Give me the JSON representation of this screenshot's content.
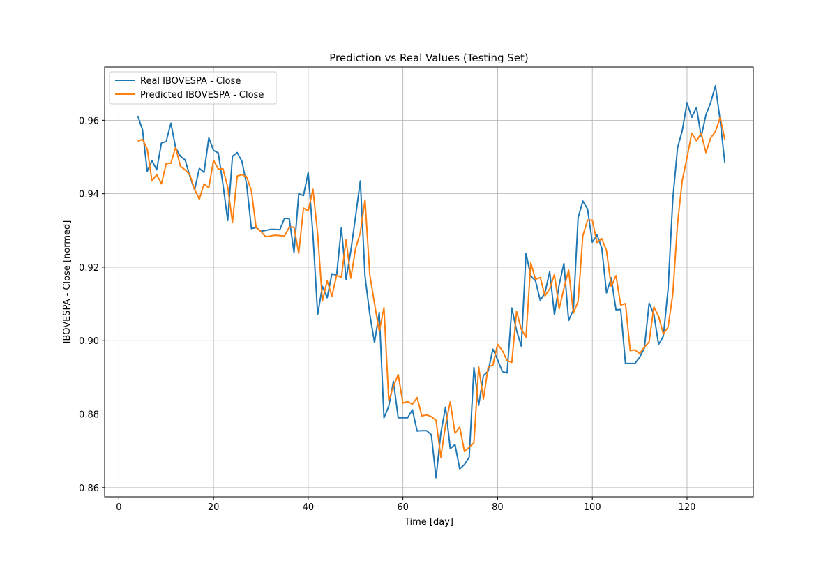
{
  "chart_data": {
    "type": "line",
    "title": "Prediction vs Real Values (Testing Set)",
    "xlabel": "Time [day]",
    "ylabel": "IBOVESPA - Close [normed]",
    "xlim": [
      -3,
      134
    ],
    "ylim": [
      0.8575,
      0.9745
    ],
    "xticks": [
      0,
      20,
      40,
      60,
      80,
      100,
      120
    ],
    "yticks": [
      0.86,
      0.88,
      0.9,
      0.92,
      0.94,
      0.96
    ],
    "ytick_labels": [
      "0.86",
      "0.88",
      "0.90",
      "0.92",
      "0.94",
      "0.96"
    ],
    "grid": true,
    "legend_position": "top-left",
    "x": [
      4,
      5,
      6,
      7,
      8,
      9,
      10,
      11,
      12,
      13,
      14,
      15,
      16,
      17,
      18,
      19,
      20,
      21,
      22,
      23,
      24,
      25,
      26,
      27,
      28,
      29,
      30,
      31,
      32,
      33,
      34,
      35,
      36,
      37,
      38,
      39,
      40,
      41,
      42,
      43,
      44,
      45,
      46,
      47,
      48,
      49,
      50,
      51,
      52,
      53,
      54,
      55,
      56,
      57,
      58,
      59,
      60,
      61,
      62,
      63,
      64,
      65,
      66,
      67,
      68,
      69,
      70,
      71,
      72,
      73,
      74,
      75,
      76,
      77,
      78,
      79,
      80,
      81,
      82,
      83,
      84,
      85,
      86,
      87,
      88,
      89,
      90,
      91,
      92,
      93,
      94,
      95,
      96,
      97,
      98,
      99,
      100,
      101,
      102,
      103,
      104,
      105,
      106,
      107,
      108,
      109,
      110,
      111,
      112,
      113,
      114,
      115,
      116,
      117,
      118,
      119,
      120,
      121,
      122,
      123,
      124,
      125,
      126,
      127,
      128
    ],
    "series": [
      {
        "name": "Real IBOVESPA - Close",
        "color": "#1f77b4",
        "values": [
          0.9612,
          0.9574,
          0.9461,
          0.949,
          0.9465,
          0.9538,
          0.9542,
          0.9592,
          0.9525,
          0.9502,
          0.9492,
          0.9448,
          0.941,
          0.9469,
          0.9458,
          0.9552,
          0.9518,
          0.9511,
          0.9425,
          0.9327,
          0.9502,
          0.9512,
          0.9488,
          0.9425,
          0.9305,
          0.9308,
          0.9298,
          0.93,
          0.9303,
          0.9303,
          0.9302,
          0.9333,
          0.9332,
          0.924,
          0.94,
          0.9395,
          0.9458,
          0.9288,
          0.9071,
          0.9148,
          0.9117,
          0.9182,
          0.9178,
          0.9308,
          0.9167,
          0.9245,
          0.9338,
          0.9435,
          0.9175,
          0.9072,
          0.8995,
          0.9077,
          0.879,
          0.8821,
          0.8889,
          0.879,
          0.879,
          0.879,
          0.8812,
          0.8754,
          0.8755,
          0.8755,
          0.8744,
          0.8627,
          0.8748,
          0.8819,
          0.8706,
          0.8717,
          0.8651,
          0.8663,
          0.8683,
          0.8927,
          0.8824,
          0.8905,
          0.8917,
          0.8977,
          0.8948,
          0.8916,
          0.8912,
          0.9089,
          0.9028,
          0.8985,
          0.9238,
          0.9176,
          0.9163,
          0.911,
          0.913,
          0.9188,
          0.9071,
          0.9152,
          0.921,
          0.9055,
          0.9084,
          0.9335,
          0.938,
          0.9358,
          0.9268,
          0.9288,
          0.9252,
          0.913,
          0.9171,
          0.9084,
          0.9085,
          0.8938,
          0.8938,
          0.8938,
          0.8955,
          0.898,
          0.9102,
          0.9072,
          0.899,
          0.9012,
          0.914,
          0.9385,
          0.9525,
          0.9572,
          0.9648,
          0.9608,
          0.9635,
          0.9555,
          0.9615,
          0.9648,
          0.9694,
          0.96,
          0.9483
        ]
      },
      {
        "name": "Predicted IBOVESPA - Close",
        "color": "#ff7f0e",
        "values": [
          0.9543,
          0.9548,
          0.9522,
          0.9435,
          0.9452,
          0.9427,
          0.9482,
          0.9483,
          0.9527,
          0.9475,
          0.9465,
          0.9452,
          0.9412,
          0.9385,
          0.9427,
          0.9416,
          0.9491,
          0.9467,
          0.9468,
          0.9418,
          0.9322,
          0.9448,
          0.9452,
          0.9446,
          0.9408,
          0.9308,
          0.9297,
          0.9283,
          0.9285,
          0.9287,
          0.9286,
          0.9285,
          0.9309,
          0.9309,
          0.9238,
          0.9361,
          0.9353,
          0.9412,
          0.929,
          0.9108,
          0.9163,
          0.9121,
          0.9178,
          0.9172,
          0.9275,
          0.917,
          0.9251,
          0.9294,
          0.9383,
          0.918,
          0.9101,
          0.9025,
          0.909,
          0.8838,
          0.8875,
          0.8908,
          0.883,
          0.8834,
          0.8827,
          0.8845,
          0.8795,
          0.8798,
          0.8793,
          0.8783,
          0.8683,
          0.877,
          0.8834,
          0.8748,
          0.8765,
          0.8698,
          0.871,
          0.8722,
          0.8928,
          0.8841,
          0.8928,
          0.8934,
          0.899,
          0.8973,
          0.8946,
          0.8941,
          0.908,
          0.9031,
          0.901,
          0.9212,
          0.9167,
          0.9172,
          0.9122,
          0.9141,
          0.918,
          0.9087,
          0.9142,
          0.9192,
          0.9075,
          0.9107,
          0.9286,
          0.9328,
          0.9328,
          0.9267,
          0.9278,
          0.9245,
          0.9147,
          0.9177,
          0.9097,
          0.9101,
          0.8973,
          0.8975,
          0.8965,
          0.8982,
          0.8997,
          0.9092,
          0.9066,
          0.9018,
          0.9037,
          0.9127,
          0.9318,
          0.9437,
          0.9498,
          0.9565,
          0.9544,
          0.9564,
          0.9512,
          0.9552,
          0.9569,
          0.9608,
          0.9547
        ]
      }
    ]
  }
}
